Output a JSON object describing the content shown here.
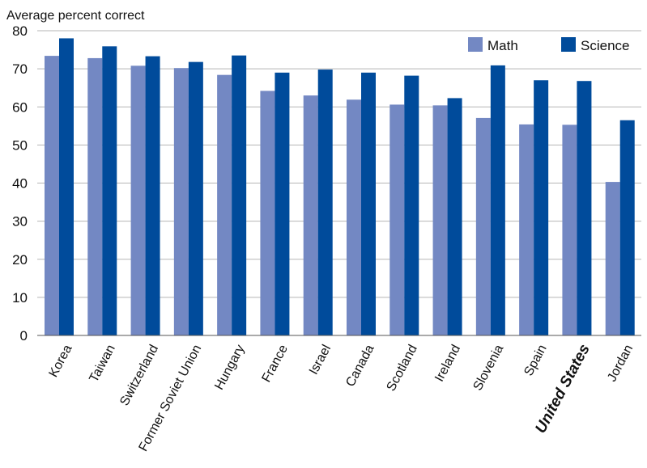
{
  "chart_data": {
    "type": "bar",
    "ylabel": "Average percent correct",
    "ylim": [
      0,
      80
    ],
    "yticks": [
      "0",
      "10",
      "20",
      "30",
      "40",
      "50",
      "60",
      "70",
      "80"
    ],
    "grid": true,
    "legend_position": "top-right",
    "categories": [
      "Korea",
      "Taiwan",
      "Switzerland",
      "Former Soviet Union",
      "Hungary",
      "France",
      "Israel",
      "Canada",
      "Scotland",
      "Ireland",
      "Slovenia",
      "Spain",
      "United States",
      "Jordan"
    ],
    "highlight_category": "United States",
    "series": [
      {
        "name": "Math",
        "color": "#7388c3",
        "values": [
          73.4,
          72.8,
          70.8,
          70.2,
          68.4,
          64.2,
          63.0,
          61.9,
          60.6,
          60.4,
          57.1,
          55.4,
          55.3,
          40.3
        ]
      },
      {
        "name": "Science",
        "color": "#004b9b",
        "values": [
          78.0,
          75.9,
          73.3,
          71.8,
          73.5,
          69.0,
          69.8,
          69.0,
          68.2,
          62.3,
          70.9,
          67.0,
          66.8,
          56.5
        ]
      }
    ]
  }
}
